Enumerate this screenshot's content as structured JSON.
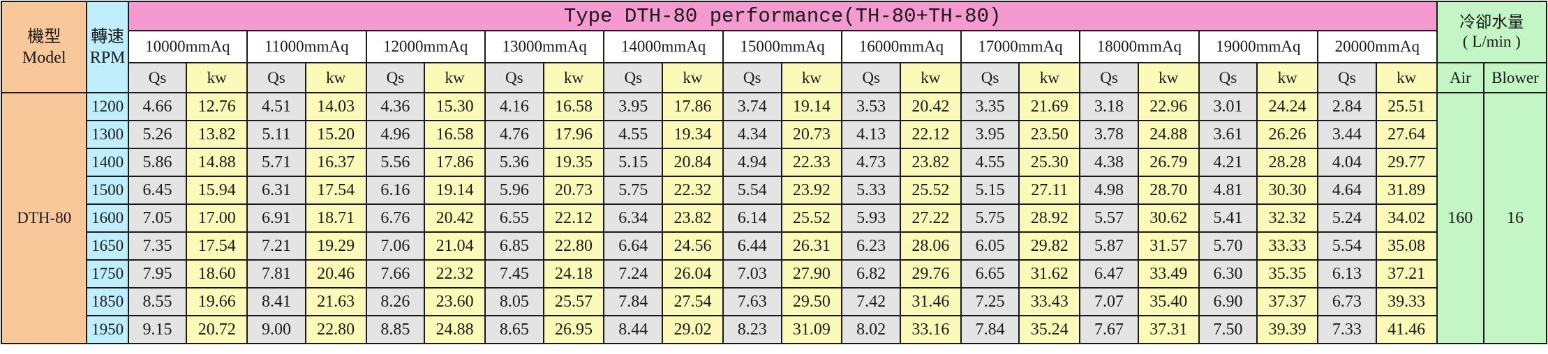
{
  "header": {
    "model_label_zh": "機型",
    "model_label_en": "Model",
    "rpm_label_zh": "轉速",
    "rpm_label_en": "RPM",
    "title": "Type DTH-80 performance(TH-80+TH-80)",
    "water_label_zh": "冷卻水量",
    "water_label_unit": "( L/min )",
    "pressures": [
      "10000mmAq",
      "11000mmAq",
      "12000mmAq",
      "13000mmAq",
      "14000mmAq",
      "15000mmAq",
      "16000mmAq",
      "17000mmAq",
      "18000mmAq",
      "19000mmAq",
      "20000mmAq"
    ],
    "qs_label": "Qs",
    "kw_label": "kw",
    "air_label": "Air",
    "blower_label": "Blower"
  },
  "model": "DTH-80",
  "water": {
    "air": "160",
    "blower": "16"
  },
  "rows": [
    {
      "rpm": "1200",
      "values": [
        [
          "4.66",
          "12.76"
        ],
        [
          "4.51",
          "14.03"
        ],
        [
          "4.36",
          "15.30"
        ],
        [
          "4.16",
          "16.58"
        ],
        [
          "3.95",
          "17.86"
        ],
        [
          "3.74",
          "19.14"
        ],
        [
          "3.53",
          "20.42"
        ],
        [
          "3.35",
          "21.69"
        ],
        [
          "3.18",
          "22.96"
        ],
        [
          "3.01",
          "24.24"
        ],
        [
          "2.84",
          "25.51"
        ]
      ]
    },
    {
      "rpm": "1300",
      "values": [
        [
          "5.26",
          "13.82"
        ],
        [
          "5.11",
          "15.20"
        ],
        [
          "4.96",
          "16.58"
        ],
        [
          "4.76",
          "17.96"
        ],
        [
          "4.55",
          "19.34"
        ],
        [
          "4.34",
          "20.73"
        ],
        [
          "4.13",
          "22.12"
        ],
        [
          "3.95",
          "23.50"
        ],
        [
          "3.78",
          "24.88"
        ],
        [
          "3.61",
          "26.26"
        ],
        [
          "3.44",
          "27.64"
        ]
      ]
    },
    {
      "rpm": "1400",
      "values": [
        [
          "5.86",
          "14.88"
        ],
        [
          "5.71",
          "16.37"
        ],
        [
          "5.56",
          "17.86"
        ],
        [
          "5.36",
          "19.35"
        ],
        [
          "5.15",
          "20.84"
        ],
        [
          "4.94",
          "22.33"
        ],
        [
          "4.73",
          "23.82"
        ],
        [
          "4.55",
          "25.30"
        ],
        [
          "4.38",
          "26.79"
        ],
        [
          "4.21",
          "28.28"
        ],
        [
          "4.04",
          "29.77"
        ]
      ]
    },
    {
      "rpm": "1500",
      "values": [
        [
          "6.45",
          "15.94"
        ],
        [
          "6.31",
          "17.54"
        ],
        [
          "6.16",
          "19.14"
        ],
        [
          "5.96",
          "20.73"
        ],
        [
          "5.75",
          "22.32"
        ],
        [
          "5.54",
          "23.92"
        ],
        [
          "5.33",
          "25.52"
        ],
        [
          "5.15",
          "27.11"
        ],
        [
          "4.98",
          "28.70"
        ],
        [
          "4.81",
          "30.30"
        ],
        [
          "4.64",
          "31.89"
        ]
      ]
    },
    {
      "rpm": "1600",
      "values": [
        [
          "7.05",
          "17.00"
        ],
        [
          "6.91",
          "18.71"
        ],
        [
          "6.76",
          "20.42"
        ],
        [
          "6.55",
          "22.12"
        ],
        [
          "6.34",
          "23.82"
        ],
        [
          "6.14",
          "25.52"
        ],
        [
          "5.93",
          "27.22"
        ],
        [
          "5.75",
          "28.92"
        ],
        [
          "5.57",
          "30.62"
        ],
        [
          "5.41",
          "32.32"
        ],
        [
          "5.24",
          "34.02"
        ]
      ]
    },
    {
      "rpm": "1650",
      "values": [
        [
          "7.35",
          "17.54"
        ],
        [
          "7.21",
          "19.29"
        ],
        [
          "7.06",
          "21.04"
        ],
        [
          "6.85",
          "22.80"
        ],
        [
          "6.64",
          "24.56"
        ],
        [
          "6.44",
          "26.31"
        ],
        [
          "6.23",
          "28.06"
        ],
        [
          "6.05",
          "29.82"
        ],
        [
          "5.87",
          "31.57"
        ],
        [
          "5.70",
          "33.33"
        ],
        [
          "5.54",
          "35.08"
        ]
      ]
    },
    {
      "rpm": "1750",
      "values": [
        [
          "7.95",
          "18.60"
        ],
        [
          "7.81",
          "20.46"
        ],
        [
          "7.66",
          "22.32"
        ],
        [
          "7.45",
          "24.18"
        ],
        [
          "7.24",
          "26.04"
        ],
        [
          "7.03",
          "27.90"
        ],
        [
          "6.82",
          "29.76"
        ],
        [
          "6.65",
          "31.62"
        ],
        [
          "6.47",
          "33.49"
        ],
        [
          "6.30",
          "35.35"
        ],
        [
          "6.13",
          "37.21"
        ]
      ]
    },
    {
      "rpm": "1850",
      "values": [
        [
          "8.55",
          "19.66"
        ],
        [
          "8.41",
          "21.63"
        ],
        [
          "8.26",
          "23.60"
        ],
        [
          "8.05",
          "25.57"
        ],
        [
          "7.84",
          "27.54"
        ],
        [
          "7.63",
          "29.50"
        ],
        [
          "7.42",
          "31.46"
        ],
        [
          "7.25",
          "33.43"
        ],
        [
          "7.07",
          "35.40"
        ],
        [
          "6.90",
          "37.37"
        ],
        [
          "6.73",
          "39.33"
        ]
      ]
    },
    {
      "rpm": "1950",
      "values": [
        [
          "9.15",
          "20.72"
        ],
        [
          "9.00",
          "22.80"
        ],
        [
          "8.85",
          "24.88"
        ],
        [
          "8.65",
          "26.95"
        ],
        [
          "8.44",
          "29.02"
        ],
        [
          "8.23",
          "31.09"
        ],
        [
          "8.02",
          "33.16"
        ],
        [
          "7.84",
          "35.24"
        ],
        [
          "7.67",
          "37.31"
        ],
        [
          "7.50",
          "39.39"
        ],
        [
          "7.33",
          "41.46"
        ]
      ]
    }
  ]
}
